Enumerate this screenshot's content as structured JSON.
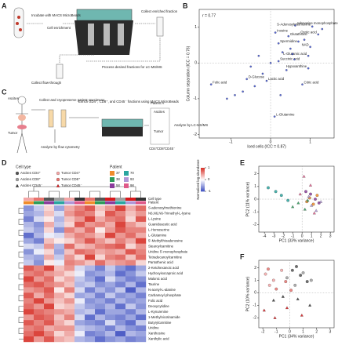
{
  "figure": {
    "panel_labels": [
      "A",
      "B",
      "C",
      "D",
      "E",
      "F"
    ],
    "A": {
      "texts": [
        "Incubate with MACS MicroBeads",
        "Cell enrichment",
        "Collect enriched fraction",
        "Collect flow-through",
        "Process desired fractions for LC-MS/MS"
      ]
    },
    "C": {
      "texts": [
        "Ascites",
        "Tumor",
        "Collect and cryopreserve patient specimens",
        "Analyze by flow cytometry",
        "Enrich CD4⁺, CD8⁺, and CD45⁻ fractions using MACS MicroBeads",
        "Patient A",
        "Ascites",
        "Tumor",
        "CD4⁺",
        "CD8⁺",
        "CD45⁻",
        "Analyze by LC-MS/MS"
      ]
    }
  },
  "chart_data": [
    {
      "type": "scatter",
      "annotation": "r = 0.77",
      "xlabel": "Iced cells (ICC = 0.87)",
      "ylabel": "Column separation (ICC = 0.76)",
      "xlim": [
        -1.8,
        1.6
      ],
      "xticks": [
        -1,
        0,
        1
      ],
      "ylim": [
        -2.1,
        1.5
      ],
      "yticks": [
        -2,
        -1,
        0,
        1
      ],
      "series": [
        {
          "name": "Metabolites",
          "color": "#3b4fd0",
          "marker": "circle",
          "x": [
            0.62,
            1.05,
            0.12,
            0.45,
            1.2,
            0.2,
            0.95,
            1.0,
            0.2,
            0.8,
            -1.5,
            -0.6,
            -0.1,
            0.1,
            0.95,
            -0.3,
            -0.5,
            0.3,
            0.5,
            0.7,
            -0.9,
            -0.2,
            0.0,
            0.4,
            0.6,
            -1.1,
            -0.7,
            0.85,
            1.3,
            -0.4,
            0.25,
            0.55
          ],
          "y": [
            1.05,
            1.02,
            0.85,
            0.75,
            0.8,
            0.55,
            0.2,
            0.45,
            0.05,
            -0.6,
            -0.6,
            -0.45,
            -0.5,
            -1.5,
            -0.15,
            0.2,
            -0.1,
            0.3,
            0.4,
            0.6,
            -0.9,
            -0.3,
            0.0,
            -0.2,
            0.1,
            -1.0,
            -0.8,
            0.65,
            0.95,
            -0.65,
            -0.9,
            0.25
          ],
          "labels": [
            "Adenosine monophosphate",
            "S-Adenosylmethionine",
            "Inosine",
            "Glutathione",
            "Orotic acid",
            "Spermidine",
            "L-Glutamic acid",
            "NAD",
            "Succinic acid",
            "Citric acid",
            "Folic acid",
            "D-Glucose",
            "Lactic acid",
            "L-Glutamine",
            "Hypoxanthine",
            null,
            null,
            null,
            null,
            null,
            null,
            null,
            null,
            null,
            null,
            null,
            null,
            null,
            null,
            null,
            null,
            null
          ]
        }
      ]
    },
    {
      "type": "scatter",
      "xlabel": "PC1 (33% variance)",
      "ylabel": "PC2 (11% variance)",
      "xlim": [
        -4.6,
        3.4
      ],
      "xticks": [
        -4,
        -3,
        -2,
        -1,
        0,
        1,
        2,
        3
      ],
      "ylim": [
        -2.6,
        2.6
      ],
      "yticks": [
        -2,
        -1,
        0,
        1,
        2
      ],
      "series": [
        {
          "name": "37",
          "color": "#f08c2c",
          "marker": "circle",
          "x": [
            0.8,
            1.2,
            1.6,
            0.5
          ],
          "y": [
            0.1,
            -0.4,
            0.3,
            -0.2
          ]
        },
        {
          "name": "38",
          "color": "#2e9b5a",
          "marker": "triangle",
          "x": [
            -1.0,
            -0.4,
            0.3,
            0.6
          ],
          "y": [
            -0.6,
            -0.3,
            -0.8,
            -0.1
          ]
        },
        {
          "name": "58",
          "color": "#8b3d9c",
          "marker": "circle",
          "x": [
            0.9,
            1.4,
            0.4,
            1.8
          ],
          "y": [
            0.4,
            0.0,
            0.6,
            -0.3
          ]
        },
        {
          "name": "70",
          "color": "#2aa6a0",
          "marker": "circle",
          "x": [
            -3.6,
            -2.8,
            -2.2,
            -1.5
          ],
          "y": [
            0.9,
            0.6,
            0.3,
            -0.1
          ]
        },
        {
          "name": "93",
          "color": "#b197d6",
          "marker": "triangle",
          "x": [
            1.0,
            1.5,
            2.0,
            0.7
          ],
          "y": [
            -0.5,
            -0.9,
            -0.2,
            0.2
          ]
        },
        {
          "name": "98",
          "color": "#e05a8a",
          "marker": "triangle",
          "x": [
            0.2,
            0.9,
            1.3,
            -0.2
          ],
          "y": [
            1.8,
            1.1,
            -1.1,
            0.4
          ]
        }
      ]
    },
    {
      "type": "scatter",
      "xlabel": "PC1 (34% variance)",
      "ylabel": "PC2 (10% variance)",
      "xlim": [
        -2.3,
        3.3
      ],
      "xticks": [
        -2,
        -1,
        0,
        1,
        2,
        3
      ],
      "ylim": [
        -2.8,
        2.6
      ],
      "yticks": [
        -2,
        -1,
        0,
        1,
        2
      ],
      "series": [
        {
          "name": "Ascites CD4⁺",
          "color": "#555555",
          "marker": "circle",
          "x": [
            0.2,
            0.8,
            1.3,
            0.5
          ],
          "y": [
            1.8,
            1.4,
            0.9,
            2.1
          ]
        },
        {
          "name": "Ascites CD8⁺",
          "color": "#a0a0a0",
          "marker": "circle",
          "x": [
            -0.2,
            0.4,
            1.0,
            1.6
          ],
          "y": [
            1.2,
            0.6,
            1.6,
            1.0
          ]
        },
        {
          "name": "Ascites CD45⁻",
          "color": "#333333",
          "marker": "triangle",
          "x": [
            -1.2,
            -0.5,
            0.6,
            1.5
          ],
          "y": [
            -0.6,
            -0.3,
            -0.5,
            -1.0
          ]
        },
        {
          "name": "Tumor CD4⁺",
          "color": "#f4a6a6",
          "marker": "circle",
          "x": [
            -1.8,
            -1.2,
            -0.6,
            -1.5
          ],
          "y": [
            1.5,
            1.0,
            1.8,
            0.6
          ]
        },
        {
          "name": "Tumor CD8⁺",
          "color": "#e8736e",
          "marker": "circle",
          "x": [
            -1.0,
            -0.3,
            0.1,
            -1.6
          ],
          "y": [
            0.3,
            0.9,
            0.2,
            1.9
          ]
        },
        {
          "name": "Tumor CD45⁻",
          "color": "#d7191c",
          "marker": "triangle",
          "x": [
            -1.9,
            -1.1,
            -0.2,
            0.9
          ],
          "y": [
            -1.4,
            -2.0,
            -1.2,
            -1.8
          ]
        }
      ]
    },
    {
      "type": "heatmap",
      "color_label": "Normalized log abundance",
      "color_range": [
        -1,
        1
      ],
      "color_ticks": [
        1,
        0,
        -1
      ],
      "track_labels": [
        "Cell type",
        "Patient"
      ],
      "legend": {
        "title": "Cell type",
        "entries": [
          {
            "name": "Ascites CD4⁺",
            "color": "#555555",
            "marker": "circle"
          },
          {
            "name": "Tumor CD4⁺",
            "color": "#f4a6a6",
            "marker": "circle"
          },
          {
            "name": "Ascites CD8⁺",
            "color": "#a0a0a0",
            "marker": "circle"
          },
          {
            "name": "Tumor CD8⁺",
            "color": "#e8736e",
            "marker": "circle"
          },
          {
            "name": "Ascites CD45⁻",
            "color": "#333333",
            "marker": "triangle"
          },
          {
            "name": "Tumor CD45⁻",
            "color": "#d7191c",
            "marker": "triangle"
          }
        ]
      },
      "patient_legend": {
        "title": "Patient",
        "entries": [
          {
            "name": "37",
            "color": "#f08c2c"
          },
          {
            "name": "70",
            "color": "#2aa6a0"
          },
          {
            "name": "38",
            "color": "#2e9b5a"
          },
          {
            "name": "93",
            "color": "#b197d6"
          },
          {
            "name": "58",
            "color": "#8b3d9c"
          },
          {
            "name": "98",
            "color": "#e05a8a"
          }
        ]
      },
      "column_cell_types": [
        "Tumor CD4⁺",
        "Tumor CD8⁺",
        "Ascites CD4⁺",
        "Ascites CD8⁺",
        "Tumor CD4⁺",
        "Ascites CD45⁻",
        "Tumor CD8⁺",
        "Ascites CD4⁺",
        "Tumor CD45⁻",
        "Ascites CD8⁺",
        "Tumor CD45⁻",
        "Ascites CD45⁻"
      ],
      "column_patients": [
        "37",
        "38",
        "58",
        "70",
        "93",
        "98",
        "37",
        "38",
        "58",
        "70",
        "93",
        "98"
      ],
      "rows": [
        "S-adenosylmethionine",
        "N6,N6,N6-Trimethyl-L-lysine",
        "L-Lysine",
        "Guanidoacetic acid",
        "L-Homoserine",
        "L-Glutamine",
        "5′-Methylthioadenosine",
        "Stearoylcarnitine",
        "Uridine 5′-monophosphate",
        "Tetradecanoylcarnitine",
        "Pantothenic acid",
        "2-Ketohexanoic acid",
        "Hydroxyisocaproic acid",
        "Malonic acid",
        "Taurine",
        "N-acetyl-L-alanine",
        "Carbamoyl phosphate",
        "Folic acid",
        "Deoxycytidine",
        "L-Kynurenine",
        "1-Methylnicotinamide",
        "Butyrylcarnitine",
        "Uridine",
        "Xanthosine",
        "Xanthylic acid"
      ],
      "values": [
        [
          -0.6,
          -0.3,
          0.2,
          -0.5,
          0.4,
          0.6,
          0.8,
          0.3,
          0.5,
          0.9,
          0.4,
          0.7
        ],
        [
          -0.5,
          -0.4,
          0.3,
          -0.2,
          0.5,
          0.7,
          0.6,
          0.2,
          0.8,
          0.6,
          0.3,
          0.5
        ],
        [
          -0.7,
          -0.2,
          0.1,
          -0.4,
          0.3,
          0.5,
          0.9,
          0.4,
          0.6,
          0.7,
          0.2,
          0.8
        ],
        [
          -0.4,
          -0.6,
          0.4,
          -0.3,
          0.2,
          0.8,
          0.5,
          0.6,
          0.4,
          0.9,
          0.5,
          0.3
        ],
        [
          -0.3,
          -0.5,
          0.2,
          -0.6,
          0.6,
          0.4,
          0.7,
          0.1,
          0.5,
          0.8,
          0.6,
          0.6
        ],
        [
          -0.8,
          -0.4,
          -0.1,
          -0.2,
          0.4,
          0.6,
          0.5,
          0.3,
          0.9,
          0.5,
          0.7,
          0.4
        ],
        [
          -0.5,
          -0.7,
          0.3,
          0.1,
          0.2,
          0.5,
          0.8,
          0.5,
          0.3,
          0.6,
          0.4,
          0.9
        ],
        [
          -0.2,
          -0.3,
          0.5,
          -0.4,
          0.7,
          0.3,
          0.4,
          0.6,
          0.7,
          0.8,
          0.2,
          0.5
        ],
        [
          -0.6,
          -0.1,
          0.2,
          -0.5,
          0.3,
          0.7,
          0.6,
          0.4,
          0.5,
          0.4,
          0.8,
          0.6
        ],
        [
          -0.4,
          -0.5,
          0.4,
          -0.3,
          0.5,
          0.2,
          0.9,
          0.2,
          0.6,
          0.7,
          0.3,
          0.7
        ],
        [
          -0.3,
          -0.6,
          0.1,
          -0.1,
          0.6,
          0.5,
          0.3,
          0.7,
          0.4,
          0.5,
          0.6,
          0.2
        ],
        [
          0.8,
          0.6,
          0.9,
          0.3,
          0.5,
          -0.2,
          -0.4,
          -0.7,
          -0.3,
          -0.6,
          -0.8,
          -0.5
        ],
        [
          0.6,
          0.7,
          0.5,
          0.4,
          0.2,
          -0.1,
          -0.6,
          -0.5,
          -0.4,
          -0.8,
          -0.6,
          -0.3
        ],
        [
          0.9,
          0.5,
          0.7,
          0.2,
          0.4,
          -0.3,
          -0.5,
          -0.8,
          -0.2,
          -0.5,
          -0.7,
          -0.6
        ],
        [
          0.7,
          0.8,
          0.6,
          0.5,
          0.3,
          -0.4,
          -0.3,
          -0.6,
          -0.5,
          -0.7,
          -0.4,
          -0.8
        ],
        [
          0.5,
          0.6,
          0.8,
          0.1,
          0.6,
          -0.2,
          -0.7,
          -0.4,
          -0.6,
          -0.3,
          -0.9,
          -0.4
        ],
        [
          0.8,
          0.4,
          0.7,
          0.4,
          0.2,
          -0.5,
          -0.4,
          -0.7,
          -0.3,
          -0.6,
          -0.5,
          -0.7
        ],
        [
          0.6,
          0.9,
          0.5,
          0.3,
          0.5,
          -0.1,
          -0.6,
          -0.5,
          -0.7,
          -0.4,
          -0.6,
          -0.5
        ],
        [
          0.7,
          0.5,
          0.9,
          0.2,
          0.3,
          -0.3,
          -0.5,
          -0.6,
          -0.4,
          -0.8,
          -0.3,
          -0.6
        ],
        [
          0.9,
          0.7,
          0.6,
          0.5,
          0.4,
          -0.4,
          -0.3,
          -0.8,
          -0.5,
          -0.5,
          -0.7,
          -0.4
        ],
        [
          0.5,
          0.8,
          0.7,
          0.3,
          0.6,
          -0.2,
          -0.8,
          -0.4,
          -0.6,
          -0.7,
          -0.5,
          -0.8
        ],
        [
          0.8,
          0.6,
          0.8,
          0.4,
          0.2,
          -0.5,
          -0.6,
          -0.7,
          -0.2,
          -0.6,
          -0.8,
          -0.3
        ],
        [
          0.6,
          0.7,
          0.4,
          0.5,
          0.5,
          -0.3,
          -0.4,
          -0.5,
          -0.7,
          -0.4,
          -0.6,
          -0.7
        ],
        [
          0.7,
          0.9,
          0.6,
          0.2,
          0.4,
          -0.1,
          -0.7,
          -0.6,
          -0.4,
          -0.9,
          -0.4,
          -0.5
        ],
        [
          0.9,
          0.5,
          0.8,
          0.4,
          0.3,
          -0.4,
          -0.5,
          -0.8,
          -0.6,
          -0.5,
          -0.7,
          -0.6
        ]
      ]
    }
  ]
}
